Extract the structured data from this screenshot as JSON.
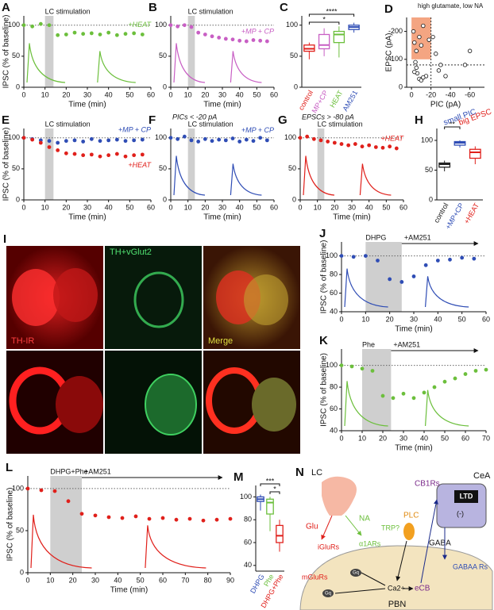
{
  "panels": {
    "A": {
      "type": "timecourse",
      "label": "A",
      "stim_label": "LC stimulation",
      "xlabel": "Time (min)",
      "ylabel": "IPSC (% of baseline)",
      "xlim": [
        0,
        60
      ],
      "xticks": [
        0,
        10,
        20,
        30,
        40,
        50,
        60
      ],
      "ylim": [
        0,
        115
      ],
      "yticks": [
        0,
        50,
        100
      ],
      "shaded": [
        10,
        14
      ],
      "reference": 100,
      "x": [
        0,
        4,
        8,
        12,
        16,
        20,
        24,
        28,
        32,
        36,
        40,
        44,
        48,
        52,
        56
      ],
      "series": [
        {
          "name": "+HEAT",
          "color": "#6cbf3c",
          "values": [
            100,
            98,
            102,
            100,
            84,
            85,
            88,
            86,
            87,
            85,
            88,
            84,
            86,
            87,
            85
          ]
        }
      ]
    },
    "B": {
      "type": "timecourse",
      "label": "B",
      "stim_label": "LC stimulation",
      "xlabel": "Time (min)",
      "xlim": [
        0,
        60
      ],
      "xticks": [
        0,
        10,
        20,
        30,
        40,
        50,
        60
      ],
      "ylim": [
        0,
        115
      ],
      "yticks": [
        0,
        50,
        100
      ],
      "shaded": [
        10,
        14
      ],
      "reference": 100,
      "x": [
        0,
        4,
        8,
        12,
        16,
        20,
        24,
        28,
        32,
        36,
        40,
        44,
        48,
        52,
        56
      ],
      "series": [
        {
          "name": "+MP + CP",
          "color": "#c85fc4",
          "values": [
            100,
            98,
            100,
            97,
            88,
            85,
            82,
            80,
            78,
            77,
            75,
            74,
            76,
            75,
            74
          ]
        }
      ]
    },
    "C": {
      "type": "box",
      "label": "C",
      "ylim": [
        0,
        115
      ],
      "yticks": [
        0,
        50,
        100
      ],
      "categories": [
        "control",
        "MP+CP",
        "HEAT",
        "AM251"
      ],
      "colors": [
        "#e0201b",
        "#c85fc4",
        "#6cbf3c",
        "#2f4db5"
      ],
      "sig": [
        "****",
        "*"
      ],
      "boxes": [
        {
          "min": 45,
          "q1": 58,
          "median": 62,
          "q3": 68,
          "max": 72
        },
        {
          "min": 50,
          "q1": 62,
          "median": 68,
          "q3": 85,
          "max": 95
        },
        {
          "min": 48,
          "q1": 72,
          "median": 85,
          "q3": 90,
          "max": 98
        },
        {
          "min": 88,
          "q1": 93,
          "median": 97,
          "q3": 100,
          "max": 104
        }
      ]
    },
    "D": {
      "type": "scatter",
      "label": "D",
      "xlabel": "PIC (pA)",
      "ylabel": "EPSC (pA)",
      "annotation": "high glutamate, low NA",
      "xlim": [
        5,
        -75
      ],
      "xticks": [
        0,
        -20,
        -40,
        -60
      ],
      "ylim": [
        0,
        -250
      ],
      "yticks": [
        0,
        -100,
        -200
      ],
      "region_x": [
        0,
        -20
      ],
      "region_y": [
        -100,
        -250
      ],
      "ref_x": -20,
      "ref_y": -80,
      "region_color": "#f4a582",
      "x": [
        -2,
        -3,
        -5,
        -8,
        -10,
        -12,
        -4,
        -6,
        -15,
        -18,
        -22,
        -25,
        -28,
        -30,
        -35,
        -55,
        -60,
        -8,
        -10,
        -12,
        -5,
        -3
      ],
      "y": [
        -200,
        -160,
        -130,
        -180,
        -150,
        -220,
        -90,
        -50,
        -40,
        -170,
        -180,
        -120,
        -60,
        -80,
        -40,
        -80,
        -130,
        -30,
        -25,
        -35,
        -70,
        -55
      ]
    },
    "E": {
      "type": "timecourse",
      "label": "E",
      "stim_label": "LC stimulation",
      "xlabel": "Time (min)",
      "ylabel": "IPSC (% of baseline)",
      "xlim": [
        0,
        60
      ],
      "xticks": [
        0,
        10,
        20,
        30,
        40,
        50,
        60
      ],
      "ylim": [
        0,
        115
      ],
      "yticks": [
        0,
        50,
        100
      ],
      "shaded": [
        10,
        14
      ],
      "reference": 100,
      "x": [
        0,
        4,
        8,
        12,
        16,
        20,
        24,
        28,
        32,
        36,
        40,
        44,
        48,
        52,
        56
      ],
      "series": [
        {
          "name": "+MP + CP",
          "color": "#2f4db5",
          "values": [
            100,
            98,
            96,
            95,
            92,
            95,
            96,
            94,
            98,
            95,
            96,
            97,
            95,
            96,
            97
          ]
        },
        {
          "name": "+HEAT",
          "color": "#e0201b",
          "values": [
            100,
            97,
            92,
            85,
            80,
            75,
            74,
            72,
            73,
            70,
            72,
            74,
            70,
            72,
            73
          ]
        }
      ]
    },
    "F": {
      "type": "timecourse",
      "label": "F",
      "subtitle": "PICs < -20 pA",
      "stim_label": "LC stimulation",
      "xlabel": "Time (min)",
      "xlim": [
        0,
        60
      ],
      "xticks": [
        0,
        10,
        20,
        30,
        40,
        50,
        60
      ],
      "ylim": [
        0,
        115
      ],
      "yticks": [
        0,
        50,
        100
      ],
      "shaded": [
        10,
        14
      ],
      "reference": 100,
      "x": [
        0,
        4,
        8,
        12,
        16,
        20,
        24,
        28,
        32,
        36,
        40,
        44,
        48,
        52,
        56
      ],
      "series": [
        {
          "name": "+MP + CP",
          "color": "#2f4db5",
          "values": [
            100,
            98,
            102,
            96,
            94,
            98,
            95,
            97,
            96,
            99,
            94,
            97,
            95,
            100,
            96
          ]
        }
      ]
    },
    "G": {
      "type": "timecourse",
      "label": "G",
      "subtitle": "EPSCs > -80 pA",
      "stim_label": "LC stimulation",
      "xlabel": "Time (min)",
      "xlim": [
        0,
        60
      ],
      "xticks": [
        0,
        10,
        20,
        30,
        40,
        50,
        60
      ],
      "ylim": [
        0,
        115
      ],
      "yticks": [
        0,
        50,
        100
      ],
      "shaded": [
        10,
        14
      ],
      "reference": 100,
      "x": [
        0,
        4,
        8,
        12,
        16,
        20,
        24,
        28,
        32,
        36,
        40,
        44,
        48,
        52,
        56
      ],
      "series": [
        {
          "name": "+HEAT",
          "color": "#e0201b",
          "values": [
            100,
            102,
            98,
            96,
            94,
            92,
            90,
            88,
            90,
            86,
            88,
            85,
            84,
            86,
            83
          ]
        }
      ]
    },
    "H": {
      "type": "box",
      "label": "H",
      "ylim": [
        0,
        120
      ],
      "yticks": [
        0,
        50,
        100
      ],
      "categories": [
        "control",
        "+MP+CP",
        "+HEAT"
      ],
      "colors": [
        "#222222",
        "#2f4db5",
        "#e0201b"
      ],
      "sig": [
        "**"
      ],
      "notes": [
        "small PIC",
        "big EPSC"
      ],
      "boxes": [
        {
          "min": 48,
          "q1": 55,
          "median": 60,
          "q3": 62,
          "max": 66
        },
        {
          "min": 88,
          "q1": 92,
          "median": 96,
          "q3": 98,
          "max": 100
        },
        {
          "min": 60,
          "q1": 70,
          "median": 80,
          "q3": 85,
          "max": 90
        }
      ]
    },
    "I": {
      "label": "I",
      "captions": [
        "TH-IR",
        "TH+vGlut2",
        "Merge"
      ]
    },
    "J": {
      "type": "timecourse",
      "label": "J",
      "stim_label": "DHPG",
      "drug_label": "+AM251",
      "xlabel": "Time (min)",
      "ylabel": "IPSC (% of baseline)",
      "xlim": [
        0,
        60
      ],
      "xticks": [
        0,
        10,
        20,
        30,
        40,
        50,
        60
      ],
      "ylim": [
        40,
        115
      ],
      "yticks": [
        40,
        60,
        80,
        100
      ],
      "shaded": [
        10,
        25
      ],
      "reference": 100,
      "x": [
        0,
        5,
        10,
        15,
        20,
        25,
        30,
        35,
        40,
        45,
        50,
        55
      ],
      "series": [
        {
          "name": "",
          "color": "#2f4db5",
          "values": [
            100,
            99,
            100,
            95,
            75,
            72,
            78,
            90,
            95,
            96,
            98,
            97
          ]
        }
      ]
    },
    "K": {
      "type": "timecourse",
      "label": "K",
      "stim_label": "Phe",
      "drug_label": "+AM251",
      "xlabel": "Time (min)",
      "ylabel": "IPSC (% of baseline)",
      "xlim": [
        0,
        70
      ],
      "xticks": [
        0,
        10,
        20,
        30,
        40,
        50,
        60,
        70
      ],
      "ylim": [
        40,
        115
      ],
      "yticks": [
        40,
        60,
        80,
        100
      ],
      "shaded": [
        10,
        24
      ],
      "reference": 100,
      "x": [
        0,
        5,
        10,
        15,
        20,
        25,
        30,
        35,
        40,
        45,
        50,
        55,
        60,
        65,
        70
      ],
      "series": [
        {
          "name": "",
          "color": "#6cbf3c",
          "values": [
            100,
            99,
            97,
            95,
            72,
            70,
            74,
            70,
            75,
            80,
            85,
            88,
            92,
            95,
            96
          ]
        }
      ]
    },
    "L": {
      "type": "timecourse",
      "label": "L",
      "stim_label": "DHPG+Phe",
      "drug_label": "+AM251",
      "xlabel": "Time (min)",
      "ylabel": "IPSC (% of baseline)",
      "xlim": [
        0,
        90
      ],
      "xticks": [
        0,
        10,
        20,
        30,
        40,
        50,
        60,
        70,
        80,
        90
      ],
      "ylim": [
        0,
        115
      ],
      "yticks": [
        0,
        50,
        100
      ],
      "shaded": [
        10,
        24
      ],
      "reference": 100,
      "x": [
        0,
        6,
        12,
        18,
        24,
        30,
        36,
        42,
        48,
        54,
        60,
        66,
        72,
        78,
        84,
        90
      ],
      "series": [
        {
          "name": "",
          "color": "#e0201b",
          "values": [
            100,
            98,
            97,
            85,
            70,
            68,
            66,
            65,
            67,
            64,
            65,
            63,
            64,
            62,
            63,
            64
          ]
        }
      ]
    },
    "M": {
      "type": "box",
      "label": "M",
      "ylim": [
        35,
        110
      ],
      "yticks": [
        40,
        60,
        80,
        100
      ],
      "categories": [
        "DHPG",
        "Phe",
        "DHPG+Phe"
      ],
      "colors": [
        "#2f4db5",
        "#6cbf3c",
        "#e0201b"
      ],
      "sig": [
        "***",
        "*"
      ],
      "boxes": [
        {
          "min": 88,
          "q1": 96,
          "median": 98,
          "q3": 100,
          "max": 102
        },
        {
          "min": 70,
          "q1": 85,
          "median": 95,
          "q3": 98,
          "max": 100
        },
        {
          "min": 52,
          "q1": 60,
          "median": 66,
          "q3": 75,
          "max": 80
        }
      ]
    },
    "N": {
      "label": "N",
      "lc": "LC",
      "cea": "CeA",
      "glu": "Glu",
      "na": "NA",
      "iglurs": "iGluRs",
      "a1ars": "α1ARs",
      "trp": "TRP?",
      "plc": "PLC",
      "cb1rs": "CB1Rs",
      "ltd": "LTD",
      "minus": "(-)",
      "gaba": "GABA",
      "gabaars": "GABAA Rs",
      "mglurs": "mGluRs",
      "gq": "Gq",
      "ca": "Ca2+",
      "ecb": "eCB",
      "pbn": "PBN"
    }
  }
}
